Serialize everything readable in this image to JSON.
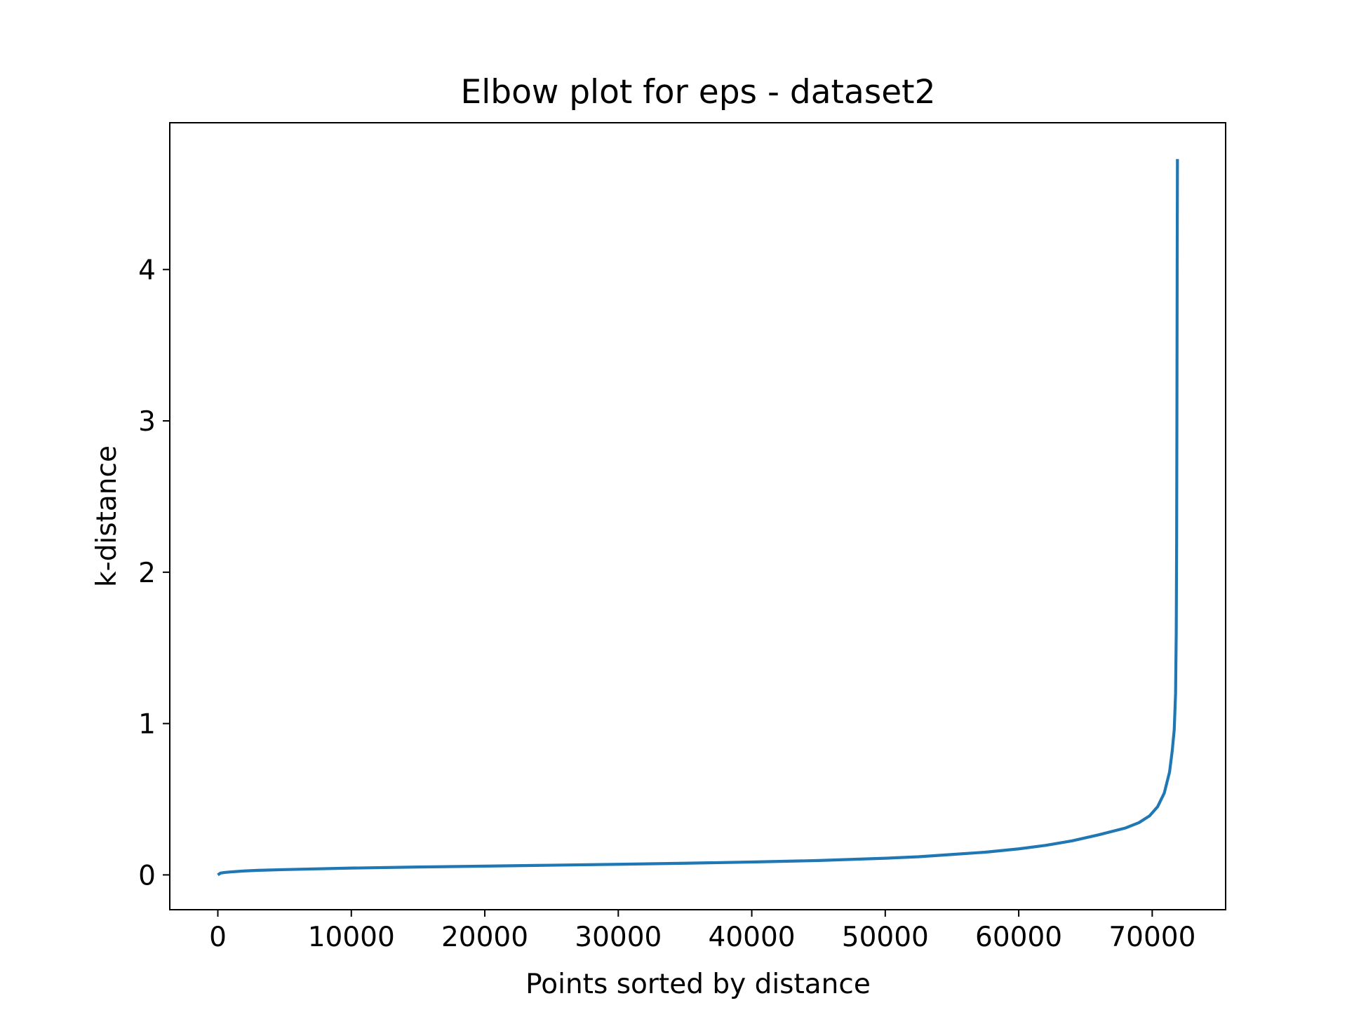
{
  "chart_data": {
    "type": "line",
    "title": "Elbow plot for eps - dataset2",
    "xlabel": "Points sorted by distance",
    "ylabel": "k-distance",
    "xlim": [
      -3600,
      75500
    ],
    "ylim": [
      -0.23,
      4.97
    ],
    "xticks": [
      0,
      10000,
      20000,
      30000,
      40000,
      50000,
      60000,
      70000
    ],
    "xtick_labels": [
      "0",
      "10000",
      "20000",
      "30000",
      "40000",
      "50000",
      "60000",
      "70000"
    ],
    "yticks": [
      0,
      1,
      2,
      3,
      4
    ],
    "ytick_labels": [
      "0",
      "1",
      "2",
      "3",
      "4"
    ],
    "grid": false,
    "legend": "none",
    "colors": {
      "line": "#1f77b4",
      "axes": "#000000",
      "background": "#ffffff"
    },
    "series": [
      {
        "x": [
          0,
          200,
          500,
          1000,
          2000,
          3000,
          5000,
          10000,
          15000,
          20000,
          25000,
          30000,
          35000,
          40000,
          45000,
          50000,
          52500,
          55000,
          57500,
          60000,
          62000,
          64000,
          66000,
          68000,
          69000,
          69800,
          70400,
          70900,
          71300,
          71500,
          71650,
          71750,
          71800,
          71830,
          71850,
          71870,
          71890
        ],
        "y": [
          0.0,
          0.012,
          0.016,
          0.02,
          0.026,
          0.03,
          0.035,
          0.045,
          0.052,
          0.058,
          0.064,
          0.07,
          0.077,
          0.085,
          0.095,
          0.11,
          0.12,
          0.135,
          0.15,
          0.172,
          0.195,
          0.225,
          0.265,
          0.31,
          0.345,
          0.39,
          0.45,
          0.54,
          0.68,
          0.82,
          0.96,
          1.2,
          1.6,
          2.2,
          3.0,
          4.0,
          4.73
        ]
      }
    ]
  }
}
